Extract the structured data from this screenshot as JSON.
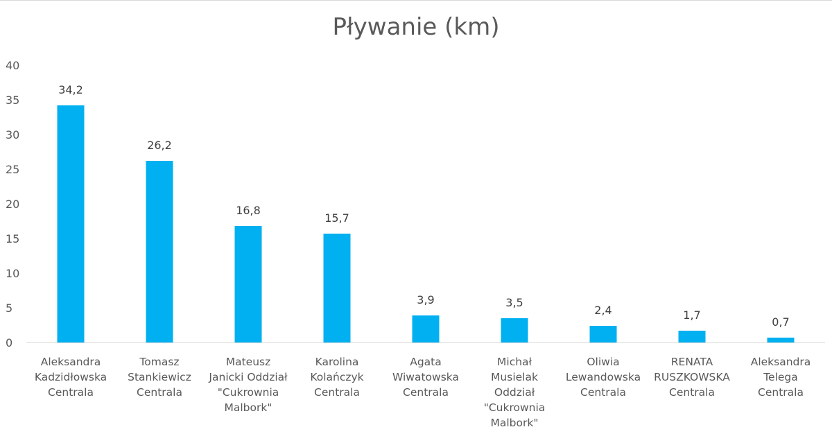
{
  "chart_data": {
    "type": "bar",
    "title": "Pływanie (km)",
    "xlabel": "",
    "ylabel": "",
    "ylim": [
      0,
      40
    ],
    "yticks": [
      0,
      5,
      10,
      15,
      20,
      25,
      30,
      35,
      40
    ],
    "grid": false,
    "legend": "none",
    "bar_color": "#00b0f0",
    "categories": [
      [
        "Aleksandra",
        "Kadzidłowska",
        "Centrala"
      ],
      [
        "Tomasz",
        "Stankiewicz",
        "Centrala"
      ],
      [
        "Mateusz",
        "Janicki Oddział",
        "\"Cukrownia",
        "Malbork\""
      ],
      [
        "Karolina",
        "Kolańczyk",
        "Centrala"
      ],
      [
        "Agata",
        "Wiwatowska",
        "Centrala"
      ],
      [
        "Michał",
        "Musielak",
        "Oddział",
        "\"Cukrownia",
        "Malbork\""
      ],
      [
        "Oliwia",
        "Lewandowska",
        "Centrala"
      ],
      [
        "RENATA",
        "RUSZKOWSKA",
        "Centrala"
      ],
      [
        "Aleksandra",
        "Telega",
        "Centrala"
      ]
    ],
    "values": [
      34.2,
      26.2,
      16.8,
      15.7,
      3.9,
      3.5,
      2.4,
      1.7,
      0.7
    ],
    "value_labels": [
      "34,2",
      "26,2",
      "16,8",
      "15,7",
      "3,9",
      "3,5",
      "2,4",
      "1,7",
      "0,7"
    ]
  }
}
